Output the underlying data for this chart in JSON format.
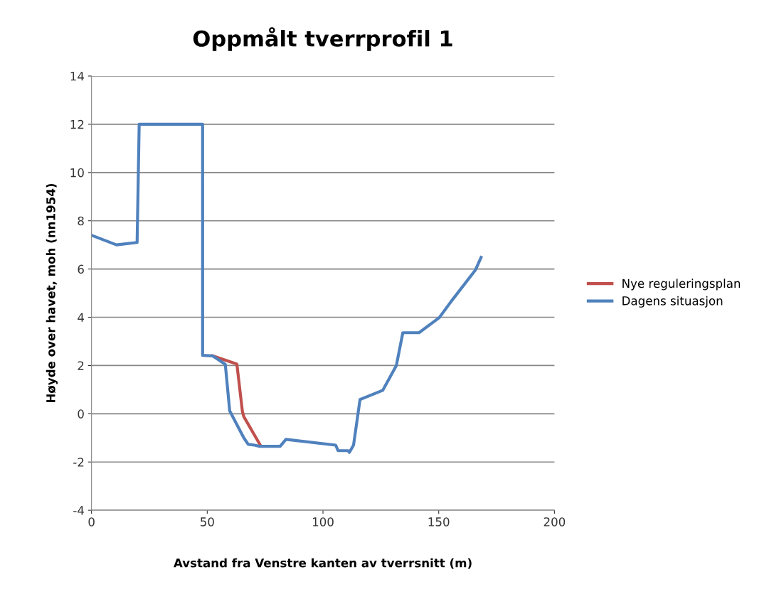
{
  "chart_data": {
    "type": "line",
    "title": "Oppmålt tverrprofil 1",
    "xlabel": "Avstand fra Venstre kanten av tverrsnitt (m)",
    "ylabel": "Høyde over havet, moh (nn1954)",
    "xlim": [
      0,
      200
    ],
    "xticks": [
      0,
      50,
      100,
      150,
      200
    ],
    "ylim": [
      -4,
      14
    ],
    "yticks": [
      -4,
      -2,
      0,
      2,
      4,
      6,
      8,
      10,
      12,
      14
    ],
    "grid": "y",
    "legend": "right",
    "marker": "none",
    "line_style": "solid",
    "series": [
      {
        "name": "Nye reguleringsplan",
        "color": "#c0504d",
        "x": [
          52.3,
          62.8,
          65.2,
          65.8,
          72.9
        ],
        "values": [
          2.4,
          2.06,
          0.09,
          -0.12,
          -1.3
        ]
      },
      {
        "name": "Dagens situasjon",
        "color": "#4f81bd",
        "x": [
          0,
          10.8,
          19.7,
          20.6,
          48,
          48,
          52.3,
          57.8,
          59.7,
          65.8,
          67.7,
          70.5,
          72.6,
          81.5,
          84,
          105.5,
          106.5,
          110.8,
          111.4,
          113.2,
          116,
          125.8,
          131.7,
          134.5,
          141.5,
          150.2,
          155.4,
          165.8,
          168.3
        ],
        "values": [
          7.4,
          7.0,
          7.1,
          12,
          12,
          2.42,
          2.4,
          2.05,
          0.12,
          -1.0,
          -1.27,
          -1.3,
          -1.35,
          -1.35,
          -1.06,
          -1.3,
          -1.53,
          -1.53,
          -1.6,
          -1.3,
          0.59,
          0.97,
          2.0,
          3.36,
          3.36,
          3.98,
          4.66,
          5.95,
          6.48
        ]
      }
    ]
  }
}
